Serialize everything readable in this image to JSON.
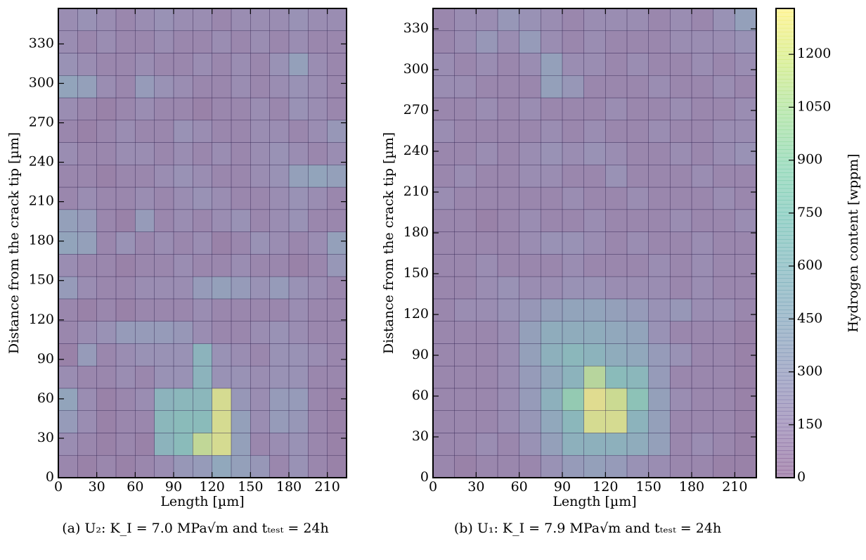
{
  "chart_data": [
    {
      "type": "heatmap",
      "xlabel": "Length [µm]",
      "ylabel": "Distance from the crack tip [µm]",
      "caption": "(a) U₂: K_I = 7.0 MPa√m and tₜₑₛₜ = 24h",
      "xlim": [
        0,
        225
      ],
      "ylim": [
        0,
        357
      ],
      "xticks": [
        0,
        30,
        60,
        90,
        120,
        150,
        180,
        210
      ],
      "yticks": [
        0,
        30,
        60,
        90,
        120,
        150,
        180,
        210,
        240,
        270,
        300,
        330
      ],
      "clim": [
        0,
        1330
      ],
      "colormap": "viridis",
      "z": [
        [
          100,
          50,
          100,
          50,
          100,
          150,
          250,
          300,
          450,
          350,
          250,
          100,
          200,
          100,
          50
        ],
        [
          150,
          100,
          50,
          100,
          50,
          600,
          700,
          1150,
          1250,
          350,
          100,
          150,
          200,
          100,
          50
        ],
        [
          300,
          150,
          50,
          100,
          100,
          650,
          700,
          700,
          1250,
          350,
          150,
          300,
          250,
          100,
          50
        ],
        [
          400,
          150,
          50,
          100,
          150,
          600,
          650,
          650,
          1250,
          250,
          150,
          300,
          300,
          100,
          50
        ],
        [
          150,
          100,
          100,
          150,
          100,
          200,
          200,
          600,
          200,
          200,
          150,
          200,
          200,
          100,
          100
        ],
        [
          50,
          300,
          100,
          150,
          200,
          200,
          200,
          600,
          200,
          150,
          100,
          200,
          200,
          150,
          100
        ],
        [
          100,
          150,
          200,
          300,
          300,
          300,
          250,
          150,
          100,
          100,
          150,
          200,
          150,
          100,
          100
        ],
        [
          100,
          50,
          100,
          50,
          100,
          100,
          100,
          150,
          100,
          100,
          100,
          100,
          150,
          100,
          100
        ],
        [
          300,
          150,
          100,
          100,
          150,
          150,
          150,
          300,
          350,
          300,
          200,
          300,
          200,
          150,
          100
        ],
        [
          150,
          100,
          100,
          50,
          100,
          100,
          150,
          100,
          100,
          150,
          100,
          100,
          50,
          100,
          250
        ],
        [
          400,
          350,
          100,
          200,
          100,
          150,
          100,
          150,
          50,
          100,
          200,
          150,
          100,
          150,
          350
        ],
        [
          350,
          300,
          100,
          50,
          300,
          100,
          150,
          100,
          150,
          200,
          100,
          150,
          200,
          100,
          100
        ],
        [
          100,
          150,
          100,
          100,
          150,
          100,
          150,
          200,
          150,
          100,
          100,
          150,
          200,
          150,
          100
        ],
        [
          100,
          100,
          50,
          100,
          100,
          150,
          200,
          150,
          100,
          100,
          150,
          200,
          350,
          400,
          350
        ],
        [
          150,
          100,
          100,
          150,
          150,
          100,
          150,
          100,
          150,
          100,
          150,
          200,
          150,
          100,
          150
        ],
        [
          100,
          50,
          100,
          150,
          100,
          100,
          200,
          150,
          100,
          100,
          150,
          150,
          100,
          150,
          250
        ],
        [
          150,
          100,
          50,
          100,
          150,
          100,
          100,
          50,
          100,
          100,
          150,
          100,
          200,
          150,
          100
        ],
        [
          400,
          350,
          150,
          100,
          300,
          200,
          150,
          100,
          100,
          150,
          100,
          150,
          200,
          150,
          100
        ],
        [
          200,
          150,
          100,
          100,
          150,
          100,
          100,
          150,
          100,
          150,
          100,
          200,
          350,
          150,
          100
        ],
        [
          150,
          100,
          150,
          100,
          100,
          150,
          100,
          100,
          150,
          100,
          150,
          100,
          150,
          100,
          100
        ],
        [
          150,
          200,
          150,
          100,
          150,
          200,
          150,
          150,
          100,
          150,
          150,
          150,
          200,
          150,
          150
        ]
      ]
    },
    {
      "type": "heatmap",
      "xlabel": "Length [µm]",
      "ylabel": "Distance from the crack tip [µm]",
      "caption": "(b) U₁: K_I = 7.9 MPa√m and tₜₑₛₜ = 24h",
      "xlim": [
        0,
        225
      ],
      "ylim": [
        0,
        345
      ],
      "xticks": [
        0,
        30,
        60,
        90,
        120,
        150,
        180,
        210
      ],
      "yticks": [
        0,
        30,
        60,
        90,
        120,
        150,
        180,
        210,
        240,
        270,
        300,
        330
      ],
      "clim": [
        0,
        1330
      ],
      "colormap": "viridis",
      "colorbar_label": "Hydrogen content [wppm]",
      "cticks": [
        0,
        150,
        300,
        450,
        600,
        750,
        900,
        1050,
        1200
      ],
      "z": [
        [
          100,
          50,
          100,
          100,
          100,
          200,
          300,
          350,
          300,
          200,
          150,
          100,
          100,
          50,
          50
        ],
        [
          100,
          100,
          150,
          100,
          200,
          350,
          550,
          550,
          550,
          500,
          350,
          100,
          150,
          100,
          50
        ],
        [
          100,
          100,
          100,
          150,
          250,
          450,
          650,
          1250,
          1250,
          600,
          350,
          100,
          100,
          100,
          50
        ],
        [
          100,
          100,
          100,
          150,
          300,
          550,
          900,
          1300,
          1200,
          800,
          350,
          150,
          100,
          100,
          50
        ],
        [
          100,
          100,
          100,
          150,
          300,
          450,
          600,
          1100,
          700,
          650,
          300,
          100,
          100,
          100,
          50
        ],
        [
          100,
          100,
          100,
          150,
          350,
          550,
          650,
          600,
          500,
          450,
          300,
          200,
          100,
          100,
          50
        ],
        [
          100,
          100,
          100,
          150,
          350,
          500,
          500,
          500,
          450,
          400,
          200,
          100,
          100,
          100,
          50
        ],
        [
          100,
          150,
          150,
          200,
          250,
          350,
          400,
          400,
          350,
          300,
          200,
          250,
          150,
          150,
          100
        ],
        [
          100,
          100,
          150,
          200,
          150,
          150,
          200,
          200,
          150,
          150,
          150,
          100,
          150,
          100,
          100
        ],
        [
          100,
          100,
          150,
          100,
          100,
          100,
          150,
          100,
          100,
          100,
          150,
          100,
          150,
          100,
          100
        ],
        [
          100,
          100,
          100,
          100,
          150,
          200,
          200,
          150,
          100,
          150,
          100,
          100,
          150,
          100,
          100
        ],
        [
          100,
          100,
          50,
          100,
          150,
          100,
          100,
          150,
          100,
          100,
          100,
          150,
          100,
          100,
          150
        ],
        [
          150,
          100,
          100,
          100,
          100,
          100,
          150,
          100,
          100,
          150,
          100,
          100,
          100,
          150,
          100
        ],
        [
          100,
          150,
          100,
          100,
          150,
          150,
          100,
          100,
          200,
          100,
          100,
          100,
          150,
          100,
          100
        ],
        [
          100,
          100,
          150,
          100,
          150,
          200,
          150,
          200,
          150,
          100,
          100,
          150,
          100,
          150,
          200
        ],
        [
          150,
          100,
          100,
          100,
          100,
          150,
          100,
          150,
          100,
          100,
          150,
          100,
          100,
          150,
          150
        ],
        [
          100,
          100,
          150,
          100,
          150,
          100,
          100,
          100,
          150,
          100,
          100,
          150,
          100,
          100,
          150
        ],
        [
          150,
          150,
          100,
          100,
          100,
          350,
          250,
          100,
          100,
          100,
          150,
          100,
          100,
          150,
          100
        ],
        [
          150,
          100,
          150,
          100,
          150,
          350,
          150,
          150,
          100,
          150,
          100,
          100,
          150,
          100,
          150
        ],
        [
          100,
          150,
          250,
          150,
          300,
          150,
          100,
          150,
          100,
          100,
          100,
          150,
          150,
          150,
          200
        ],
        [
          100,
          150,
          150,
          250,
          200,
          150,
          100,
          150,
          150,
          150,
          100,
          150,
          100,
          200,
          350
        ]
      ]
    }
  ]
}
